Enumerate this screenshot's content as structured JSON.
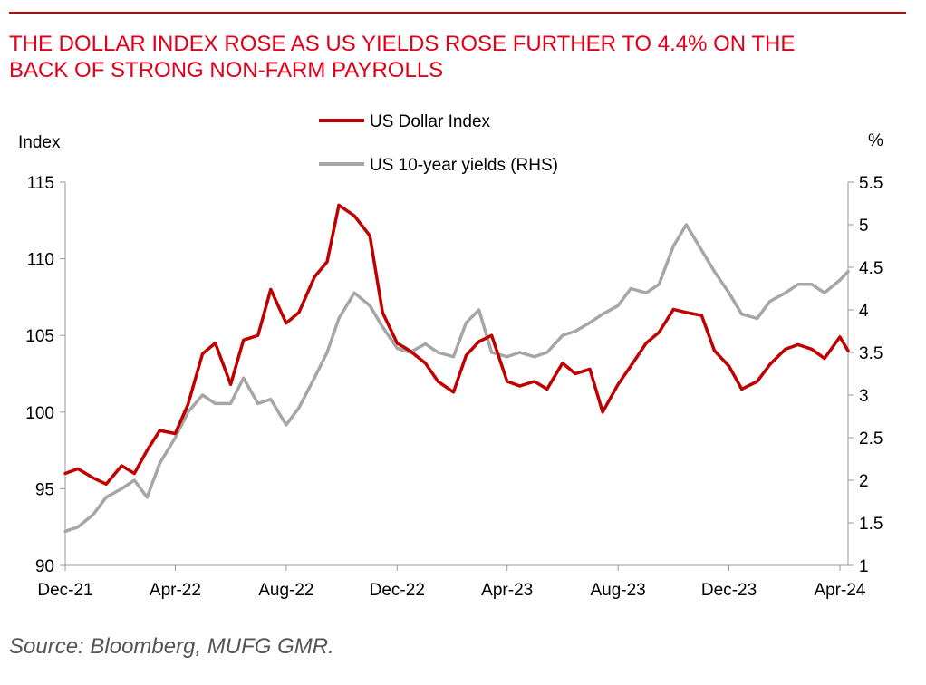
{
  "header": {
    "title_line1": "THE DOLLAR INDEX ROSE AS US YIELDS ROSE FURTHER TO 4.4% ON THE",
    "title_line2": "BACK OF STRONG NON-FARM PAYROLLS"
  },
  "footer": {
    "source": "Source: Bloomberg, MUFG GMR."
  },
  "colors": {
    "accent": "#cc0000",
    "dxy": "#c00000",
    "yields": "#a6a6a6"
  },
  "chart_data": {
    "type": "line",
    "ylabel_left": "Index",
    "ylabel_right": "%",
    "ylim_left": [
      90,
      115
    ],
    "ylim_right": [
      1,
      5.5
    ],
    "yticks_left": [
      "90",
      "95",
      "100",
      "105",
      "110",
      "115"
    ],
    "yticks_right": [
      "1",
      "1.5",
      "2",
      "2.5",
      "3",
      "3.5",
      "4",
      "4.5",
      "5",
      "5.5"
    ],
    "xticks": [
      "Dec-21",
      "Apr-22",
      "Aug-22",
      "Dec-22",
      "Apr-23",
      "Aug-23",
      "Dec-23",
      "Apr-24"
    ],
    "legend_placement": "top-center",
    "series": [
      {
        "name": "US Dollar Index",
        "axis": "left",
        "x": [
          "2021-12-01",
          "2021-12-15",
          "2022-01-01",
          "2022-01-15",
          "2022-02-01",
          "2022-02-15",
          "2022-03-01",
          "2022-03-15",
          "2022-04-01",
          "2022-04-15",
          "2022-05-01",
          "2022-05-15",
          "2022-06-01",
          "2022-06-15",
          "2022-07-01",
          "2022-07-15",
          "2022-08-01",
          "2022-08-15",
          "2022-09-01",
          "2022-09-15",
          "2022-09-28",
          "2022-10-15",
          "2022-11-01",
          "2022-11-15",
          "2022-12-01",
          "2022-12-15",
          "2023-01-01",
          "2023-01-15",
          "2023-02-01",
          "2023-02-15",
          "2023-03-01",
          "2023-03-15",
          "2023-04-01",
          "2023-04-15",
          "2023-05-01",
          "2023-05-15",
          "2023-06-01",
          "2023-06-15",
          "2023-07-01",
          "2023-07-15",
          "2023-08-01",
          "2023-08-15",
          "2023-09-01",
          "2023-09-15",
          "2023-10-01",
          "2023-10-15",
          "2023-11-01",
          "2023-11-15",
          "2023-12-01",
          "2023-12-15",
          "2024-01-01",
          "2024-01-15",
          "2024-02-01",
          "2024-02-15",
          "2024-03-01",
          "2024-03-15",
          "2024-04-01",
          "2024-04-10"
        ],
        "values": [
          96.0,
          96.3,
          95.7,
          95.3,
          96.5,
          96.0,
          97.5,
          98.8,
          98.6,
          100.5,
          103.8,
          104.5,
          101.8,
          104.7,
          105.0,
          108.0,
          105.8,
          106.5,
          108.8,
          109.8,
          113.5,
          112.8,
          111.5,
          106.5,
          104.5,
          104.0,
          103.2,
          102.0,
          101.3,
          103.7,
          104.6,
          105.0,
          102.0,
          101.7,
          102.0,
          101.5,
          103.2,
          102.5,
          102.8,
          100.0,
          101.8,
          103.0,
          104.5,
          105.2,
          106.7,
          106.5,
          106.3,
          104.0,
          103.0,
          101.5,
          102.0,
          103.1,
          104.1,
          104.4,
          104.1,
          103.5,
          104.9,
          104.0
        ]
      },
      {
        "name": "US 10-year yields (RHS)",
        "axis": "right",
        "x": [
          "2021-12-01",
          "2021-12-15",
          "2022-01-01",
          "2022-01-15",
          "2022-02-01",
          "2022-02-15",
          "2022-03-01",
          "2022-03-15",
          "2022-04-01",
          "2022-04-15",
          "2022-05-01",
          "2022-05-15",
          "2022-06-01",
          "2022-06-15",
          "2022-07-01",
          "2022-07-15",
          "2022-08-01",
          "2022-08-15",
          "2022-09-01",
          "2022-09-15",
          "2022-09-28",
          "2022-10-15",
          "2022-11-01",
          "2022-11-15",
          "2022-12-01",
          "2022-12-15",
          "2023-01-01",
          "2023-01-15",
          "2023-02-01",
          "2023-02-15",
          "2023-03-01",
          "2023-03-15",
          "2023-04-01",
          "2023-04-15",
          "2023-05-01",
          "2023-05-15",
          "2023-06-01",
          "2023-06-15",
          "2023-07-01",
          "2023-07-15",
          "2023-08-01",
          "2023-08-15",
          "2023-09-01",
          "2023-09-15",
          "2023-10-01",
          "2023-10-15",
          "2023-11-01",
          "2023-11-15",
          "2023-12-01",
          "2023-12-15",
          "2024-01-01",
          "2024-01-15",
          "2024-02-01",
          "2024-02-15",
          "2024-03-01",
          "2024-03-15",
          "2024-04-01",
          "2024-04-10"
        ],
        "values": [
          1.4,
          1.45,
          1.6,
          1.8,
          1.9,
          2.0,
          1.8,
          2.2,
          2.5,
          2.8,
          3.0,
          2.9,
          2.9,
          3.2,
          2.9,
          2.95,
          2.65,
          2.85,
          3.2,
          3.5,
          3.9,
          4.2,
          4.05,
          3.8,
          3.55,
          3.5,
          3.6,
          3.5,
          3.45,
          3.85,
          4.0,
          3.5,
          3.45,
          3.5,
          3.45,
          3.5,
          3.7,
          3.75,
          3.85,
          3.95,
          4.05,
          4.25,
          4.2,
          4.3,
          4.75,
          5.0,
          4.7,
          4.45,
          4.2,
          3.95,
          3.9,
          4.1,
          4.2,
          4.3,
          4.3,
          4.2,
          4.35,
          4.45
        ]
      }
    ]
  }
}
